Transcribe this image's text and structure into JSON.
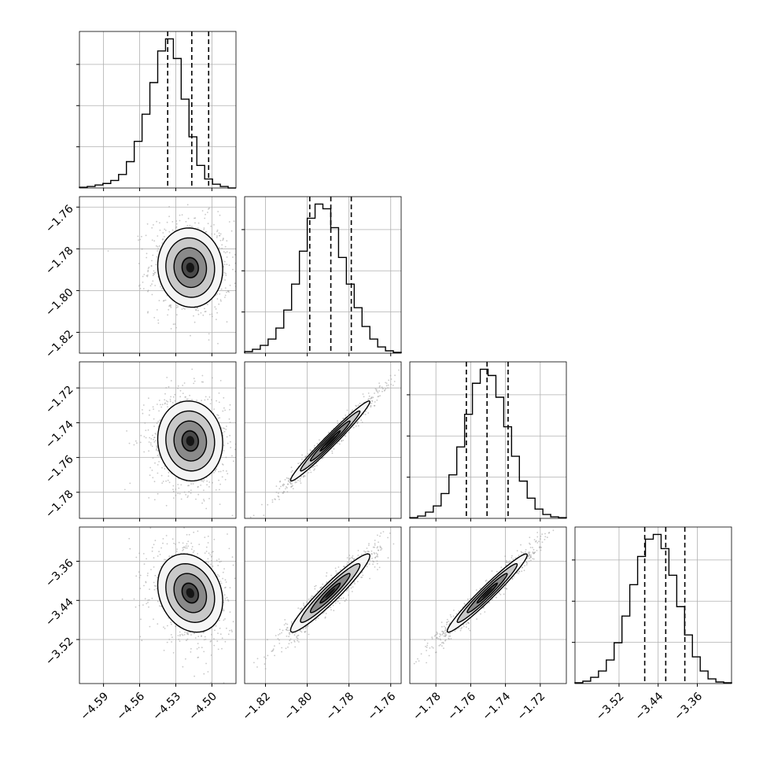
{
  "chart_data": {
    "type": "corner",
    "grid": true,
    "colors": {
      "lines": "#000000",
      "grid": "#b0b0b0",
      "scatter": "#9a9a9a"
    },
    "params": [
      {
        "range": [
          -4.61,
          -4.48
        ],
        "ticks": [
          -4.59,
          -4.56,
          -4.53,
          -4.5
        ],
        "tick_labels": [
          "−4.59",
          "−4.56",
          "−4.53",
          "−4.50"
        ],
        "center": -4.518,
        "sigma": 0.0135,
        "quantiles": [
          -4.5367,
          -4.5167,
          -4.5027
        ],
        "hist": [
          1,
          2,
          4,
          6,
          10,
          18,
          35,
          62,
          98,
          140,
          182,
          198,
          172,
          118,
          68,
          30,
          12,
          5,
          2,
          0
        ]
      },
      {
        "range": [
          -1.83,
          -1.755
        ],
        "ticks": [
          -1.82,
          -1.8,
          -1.78,
          -1.76
        ],
        "tick_labels": [
          "−1.82",
          "−1.80",
          "−1.78",
          "−1.76"
        ],
        "center": -1.789,
        "sigma": 0.0095,
        "quantiles": [
          -1.7988,
          -1.7887,
          -1.7789
        ],
        "hist": [
          2,
          5,
          10,
          18,
          32,
          55,
          88,
          130,
          172,
          190,
          184,
          160,
          122,
          88,
          58,
          34,
          18,
          8,
          3,
          1
        ]
      },
      {
        "range": [
          -1.795,
          -1.705
        ],
        "ticks": [
          -1.78,
          -1.76,
          -1.74,
          -1.72
        ],
        "tick_labels": [
          "−1.78",
          "−1.76",
          "−1.74",
          "−1.72"
        ],
        "center": -1.7505,
        "sigma": 0.0115,
        "quantiles": [
          -1.7625,
          -1.7506,
          -1.7385
        ],
        "hist": [
          1,
          3,
          8,
          16,
          32,
          56,
          92,
          134,
          174,
          192,
          184,
          156,
          118,
          80,
          48,
          26,
          12,
          5,
          2,
          1
        ]
      },
      {
        "range": [
          -3.61,
          -3.29
        ],
        "ticks": [
          -3.52,
          -3.44,
          -3.36
        ],
        "tick_labels": [
          "−3.52",
          "−3.44",
          "−3.36"
        ],
        "center": -3.425,
        "sigma": 0.04,
        "quantiles": [
          -3.4675,
          -3.4245,
          -3.3855
        ],
        "hist": [
          1,
          3,
          8,
          16,
          30,
          52,
          86,
          126,
          162,
          184,
          190,
          172,
          138,
          98,
          62,
          34,
          16,
          6,
          2,
          1
        ]
      }
    ],
    "correlations": [
      {
        "row": 1,
        "col": 0,
        "rho": -0.05
      },
      {
        "row": 2,
        "col": 0,
        "rho": -0.05
      },
      {
        "row": 2,
        "col": 1,
        "rho": 0.98
      },
      {
        "row": 3,
        "col": 0,
        "rho": -0.2
      },
      {
        "row": 3,
        "col": 1,
        "rho": 0.95
      },
      {
        "row": 3,
        "col": 2,
        "rho": 0.97
      }
    ]
  }
}
